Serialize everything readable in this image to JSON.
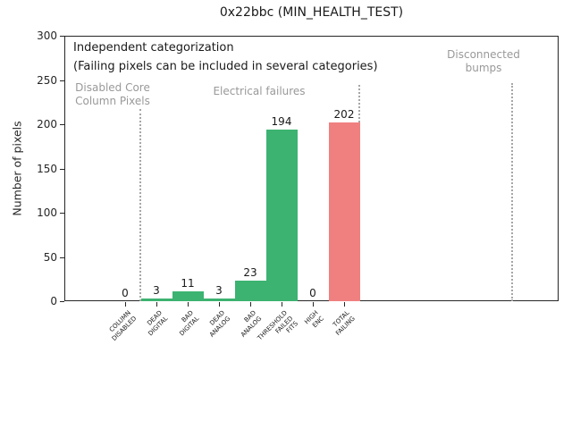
{
  "title": "0x22bbc (MIN_HEALTH_TEST)",
  "chart_data": {
    "type": "bar",
    "title": "0x22bbc (MIN_HEALTH_TEST)",
    "xlabel": "",
    "ylabel": "Number of pixels",
    "ylim": [
      0,
      300
    ],
    "yticks": [
      0,
      50,
      100,
      150,
      200,
      250,
      300
    ],
    "grid": false,
    "legend": "none",
    "categories": [
      "COLUMN\nDISABLED",
      "DEAD\nDIGITAL",
      "BAD\nDIGITAL",
      "DEAD\nANALOG",
      "BAD\nANALOG",
      "THRESHOLD\nFAILED\nFITS",
      "HIGH\nENC",
      "TOTAL\nFAILING"
    ],
    "values": [
      0,
      3,
      11,
      3,
      23,
      194,
      0,
      202
    ],
    "value_labels": [
      "0",
      "3",
      "11",
      "3",
      "23",
      "194",
      "0",
      "202"
    ],
    "bar_colors": [
      "#3cb371",
      "#3cb371",
      "#3cb371",
      "#3cb371",
      "#3cb371",
      "#3cb371",
      "#3cb371",
      "#f08080"
    ],
    "annotation_lines": [
      "Independent categorization",
      "(Failing pixels can be included in several categories)"
    ],
    "sections": [
      {
        "label": "Disabled Core\nColumn Pixels"
      },
      {
        "label": "Electrical failures"
      },
      {
        "label": "Disconnected\nbumps"
      }
    ]
  },
  "colors": {
    "bar_green": "#3cb371",
    "bar_coral": "#f08080",
    "section_label_gray": "#999999",
    "divider_gray": "#a6a6a6",
    "axis": "#262626"
  }
}
